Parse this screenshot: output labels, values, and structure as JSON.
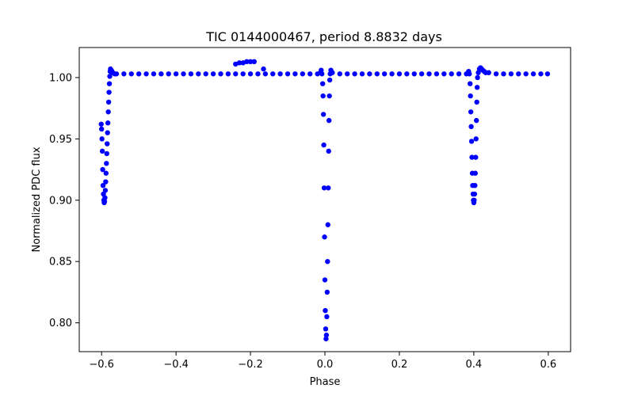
{
  "chart_data": {
    "type": "scatter",
    "title": "TIC 0144000467, period 8.8832 days",
    "xlabel": "Phase",
    "ylabel": "Normalized PDC flux",
    "xlim": [
      -0.66,
      0.66
    ],
    "ylim": [
      0.7765,
      1.0245
    ],
    "x_ticks": [
      -0.6,
      -0.4,
      -0.2,
      0.0,
      0.2,
      0.4,
      0.6
    ],
    "x_tick_labels": [
      "−0.6",
      "−0.4",
      "−0.2",
      "0.0",
      "0.2",
      "0.4",
      "0.6"
    ],
    "y_ticks": [
      0.8,
      0.85,
      0.9,
      0.95,
      1.0
    ],
    "y_tick_labels": [
      "0.80",
      "0.85",
      "0.90",
      "0.95",
      "1.00"
    ],
    "grid": false,
    "marker_color": "#0000ff",
    "series": [
      {
        "name": "flux",
        "points": [
          [
            -0.601,
            0.962
          ],
          [
            -0.6,
            0.958
          ],
          [
            -0.599,
            0.95
          ],
          [
            -0.598,
            0.94
          ],
          [
            -0.597,
            0.925
          ],
          [
            -0.596,
            0.912
          ],
          [
            -0.595,
            0.905
          ],
          [
            -0.594,
            0.9
          ],
          [
            -0.593,
            0.898
          ],
          [
            -0.592,
            0.899
          ],
          [
            -0.591,
            0.902
          ],
          [
            -0.59,
            0.908
          ],
          [
            -0.589,
            0.915
          ],
          [
            -0.588,
            0.922
          ],
          [
            -0.587,
            0.93
          ],
          [
            -0.586,
            0.938
          ],
          [
            -0.585,
            0.946
          ],
          [
            -0.584,
            0.955
          ],
          [
            -0.583,
            0.963
          ],
          [
            -0.582,
            0.972
          ],
          [
            -0.581,
            0.98
          ],
          [
            -0.58,
            0.988
          ],
          [
            -0.579,
            0.995
          ],
          [
            -0.578,
            1.001
          ],
          [
            -0.577,
            1.005
          ],
          [
            -0.576,
            1.007
          ],
          [
            -0.574,
            1.006
          ],
          [
            -0.572,
            1.005
          ],
          [
            -0.57,
            1.004
          ],
          [
            -0.565,
            1.003
          ],
          [
            -0.56,
            1.003
          ],
          [
            -0.54,
            1.003
          ],
          [
            -0.52,
            1.003
          ],
          [
            -0.5,
            1.003
          ],
          [
            -0.48,
            1.003
          ],
          [
            -0.46,
            1.003
          ],
          [
            -0.44,
            1.003
          ],
          [
            -0.42,
            1.003
          ],
          [
            -0.4,
            1.003
          ],
          [
            -0.38,
            1.003
          ],
          [
            -0.36,
            1.003
          ],
          [
            -0.34,
            1.003
          ],
          [
            -0.32,
            1.003
          ],
          [
            -0.3,
            1.003
          ],
          [
            -0.28,
            1.003
          ],
          [
            -0.26,
            1.003
          ],
          [
            -0.24,
            1.003
          ],
          [
            -0.22,
            1.003
          ],
          [
            -0.2,
            1.003
          ],
          [
            -0.18,
            1.003
          ],
          [
            -0.16,
            1.003
          ],
          [
            -0.14,
            1.003
          ],
          [
            -0.12,
            1.003
          ],
          [
            -0.1,
            1.003
          ],
          [
            -0.08,
            1.003
          ],
          [
            -0.06,
            1.003
          ],
          [
            -0.04,
            1.003
          ],
          [
            -0.02,
            1.003
          ],
          [
            -0.24,
            1.011
          ],
          [
            -0.23,
            1.012
          ],
          [
            -0.22,
            1.012
          ],
          [
            -0.21,
            1.013
          ],
          [
            -0.2,
            1.013
          ],
          [
            -0.19,
            1.013
          ],
          [
            -0.165,
            1.007
          ],
          [
            -0.012,
            1.004
          ],
          [
            -0.01,
            1.006
          ],
          [
            -0.008,
            1.003
          ],
          [
            -0.006,
            0.995
          ],
          [
            -0.005,
            0.985
          ],
          [
            -0.004,
            0.97
          ],
          [
            -0.003,
            0.945
          ],
          [
            -0.002,
            0.91
          ],
          [
            -0.001,
            0.87
          ],
          [
            0.0,
            0.835
          ],
          [
            0.001,
            0.81
          ],
          [
            0.002,
            0.795
          ],
          [
            0.003,
            0.787
          ],
          [
            0.004,
            0.79
          ],
          [
            0.005,
            0.805
          ],
          [
            0.006,
            0.825
          ],
          [
            0.007,
            0.85
          ],
          [
            0.008,
            0.88
          ],
          [
            0.009,
            0.91
          ],
          [
            0.01,
            0.94
          ],
          [
            0.011,
            0.965
          ],
          [
            0.012,
            0.985
          ],
          [
            0.013,
            0.998
          ],
          [
            0.014,
            1.003
          ],
          [
            0.016,
            1.006
          ],
          [
            0.02,
            1.004
          ],
          [
            0.04,
            1.003
          ],
          [
            0.06,
            1.003
          ],
          [
            0.08,
            1.003
          ],
          [
            0.1,
            1.003
          ],
          [
            0.12,
            1.003
          ],
          [
            0.14,
            1.003
          ],
          [
            0.16,
            1.003
          ],
          [
            0.18,
            1.003
          ],
          [
            0.2,
            1.003
          ],
          [
            0.22,
            1.003
          ],
          [
            0.24,
            1.003
          ],
          [
            0.26,
            1.003
          ],
          [
            0.28,
            1.003
          ],
          [
            0.3,
            1.003
          ],
          [
            0.32,
            1.003
          ],
          [
            0.34,
            1.003
          ],
          [
            0.36,
            1.003
          ],
          [
            0.38,
            1.003
          ],
          [
            0.386,
            1.005
          ],
          [
            0.388,
            1.003
          ],
          [
            0.39,
            0.995
          ],
          [
            0.391,
            0.985
          ],
          [
            0.392,
            0.972
          ],
          [
            0.393,
            0.96
          ],
          [
            0.394,
            0.948
          ],
          [
            0.395,
            0.935
          ],
          [
            0.396,
            0.922
          ],
          [
            0.397,
            0.912
          ],
          [
            0.398,
            0.905
          ],
          [
            0.399,
            0.9
          ],
          [
            0.4,
            0.898
          ],
          [
            0.401,
            0.9
          ],
          [
            0.402,
            0.905
          ],
          [
            0.403,
            0.912
          ],
          [
            0.404,
            0.922
          ],
          [
            0.405,
            0.935
          ],
          [
            0.406,
            0.95
          ],
          [
            0.407,
            0.965
          ],
          [
            0.408,
            0.98
          ],
          [
            0.409,
            0.992
          ],
          [
            0.41,
            1.0
          ],
          [
            0.412,
            1.004
          ],
          [
            0.415,
            1.007
          ],
          [
            0.418,
            1.008
          ],
          [
            0.421,
            1.007
          ],
          [
            0.424,
            1.006
          ],
          [
            0.428,
            1.005
          ],
          [
            0.432,
            1.004
          ],
          [
            0.44,
            1.004
          ],
          [
            0.46,
            1.003
          ],
          [
            0.48,
            1.003
          ],
          [
            0.5,
            1.003
          ],
          [
            0.52,
            1.003
          ],
          [
            0.54,
            1.003
          ],
          [
            0.56,
            1.003
          ],
          [
            0.58,
            1.003
          ],
          [
            0.598,
            1.003
          ]
        ]
      }
    ]
  }
}
